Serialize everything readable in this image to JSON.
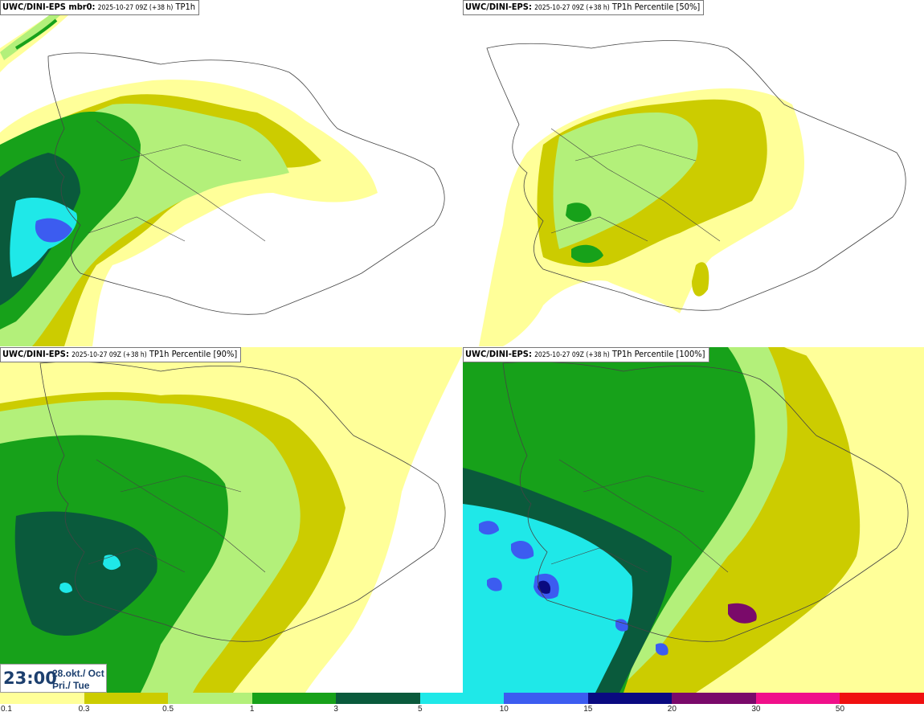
{
  "panels": [
    {
      "model": "UWC/DINI-EPS mbr0:",
      "meta": "2025-10-27 09Z (+38 h)",
      "field": "TP1h"
    },
    {
      "model": "UWC/DINI-EPS:",
      "meta": "2025-10-27 09Z (+38 h)",
      "field": "TP1h Percentile [50%]"
    },
    {
      "model": "UWC/DINI-EPS:",
      "meta": "2025-10-27 09Z (+38 h)",
      "field": "TP1h Percentile [90%]"
    },
    {
      "model": "UWC/DINI-EPS:",
      "meta": "2025-10-27 09Z (+38 h)",
      "field": "TP1h Percentile [100%]"
    }
  ],
  "timestamp": {
    "time": "23:00",
    "date": "28.okt./ Oct",
    "day": "Þri./ Tue"
  },
  "legend": {
    "ticks": [
      "0.1",
      "0.3",
      "0.5",
      "1",
      "3",
      "5",
      "10",
      "15",
      "20",
      "30",
      "50"
    ],
    "colors": [
      "#ffff99",
      "#cccc00",
      "#b3f07a",
      "#17a11a",
      "#0a5a3c",
      "#1fe8e8",
      "#3c5cf0",
      "#0a0a80",
      "#7a0a6a",
      "#f0108a",
      "#f01010"
    ]
  }
}
